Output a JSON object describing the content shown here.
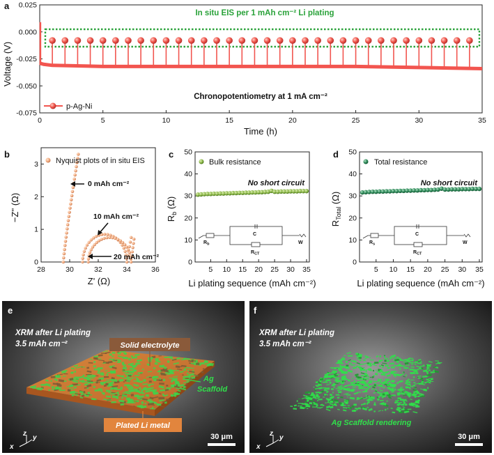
{
  "chart_data": [
    {
      "panel": "a",
      "type": "line",
      "xlabel": "Time (h)",
      "ylabel": "Voltage (V)",
      "xlim": [
        0,
        35
      ],
      "ylim": [
        -0.075,
        0.025
      ],
      "xticks": [
        "0",
        "5",
        "10",
        "15",
        "20",
        "25",
        "30",
        "35"
      ],
      "yticks": [
        "0.025",
        "0.000",
        "-0.025",
        "-0.050",
        "-0.075"
      ],
      "legend": "p-Ag-Ni",
      "annotation_top": "In situ EIS per 1 mAh cm⁻² Li plating",
      "annotation_bottom": "Chronopotentiometry at 1 mA cm⁻²",
      "series": [
        {
          "name": "p-Ag-Ni",
          "baseline": {
            "x": [
              0,
              0.3,
              1,
              5,
              10,
              15,
              20,
              25,
              30,
              35
            ],
            "y": [
              -0.029,
              -0.03,
              -0.031,
              -0.032,
              -0.032,
              -0.032,
              -0.032,
              -0.032,
              -0.033,
              -0.034
            ]
          },
          "eis_spikes_x": [
            1,
            2,
            3,
            4,
            5,
            6,
            7,
            8,
            9,
            10,
            11,
            12,
            13,
            14,
            15,
            16,
            17,
            18,
            19,
            20,
            21,
            22,
            23,
            24,
            25,
            26,
            27,
            28,
            29,
            30,
            31,
            32,
            33,
            34
          ],
          "eis_spikes_top_y": -0.008,
          "initial_spike": {
            "x": 0.05,
            "y": 0.009
          }
        }
      ]
    },
    {
      "panel": "b",
      "type": "scatter",
      "xlabel": "Z' (Ω)",
      "ylabel": "−Z'' (Ω)",
      "xlim": [
        28,
        36
      ],
      "ylim": [
        0,
        3.5
      ],
      "xticks": [
        "28",
        "30",
        "32",
        "34",
        "36"
      ],
      "yticks": [
        "0",
        "1",
        "2",
        "3"
      ],
      "legend": "Nyquist plots of in situ EIS",
      "labels": [
        "0 mAh cm⁻²",
        "10 mAh cm⁻²",
        "20 mAh cm⁻²"
      ]
    },
    {
      "panel": "c",
      "type": "scatter",
      "xlabel": "Li plating sequence (mAh cm⁻²)",
      "ylabel": "R_b (Ω)",
      "xlim": [
        1,
        35
      ],
      "ylim": [
        0,
        50
      ],
      "xticks": [
        "5",
        "10",
        "15",
        "20",
        "25",
        "30",
        "35"
      ],
      "yticks": [
        "0",
        "10",
        "20",
        "30",
        "40",
        "50"
      ],
      "legend": "Bulk resistance",
      "annotation": "No short circuit",
      "x": [
        1,
        2,
        3,
        4,
        5,
        6,
        7,
        8,
        9,
        10,
        11,
        12,
        13,
        14,
        15,
        16,
        17,
        18,
        19,
        20,
        21,
        22,
        23,
        24,
        25,
        26,
        27,
        28,
        29,
        30,
        31,
        32,
        33,
        34,
        35
      ],
      "y": [
        30.6,
        30.7,
        30.8,
        30.9,
        30.9,
        31.0,
        31.0,
        31.1,
        31.1,
        31.2,
        31.2,
        31.3,
        31.3,
        31.4,
        31.4,
        31.5,
        31.5,
        31.6,
        31.6,
        31.7,
        31.7,
        31.8,
        31.9,
        32.3,
        31.9,
        31.9,
        32.0,
        32.0,
        32.0,
        32.1,
        32.1,
        32.1,
        32.2,
        32.2,
        32.2
      ],
      "circuit": {
        "r_b": "R_b",
        "c": "C",
        "r_ct": "R_CT",
        "w": "W"
      }
    },
    {
      "panel": "d",
      "type": "scatter",
      "xlabel": "Li plating sequence (mAh cm⁻²)",
      "ylabel": "R_Total (Ω)",
      "xlim": [
        1,
        35
      ],
      "ylim": [
        0,
        50
      ],
      "xticks": [
        "5",
        "10",
        "15",
        "20",
        "25",
        "30",
        "35"
      ],
      "yticks": [
        "0",
        "10",
        "20",
        "30",
        "40",
        "50"
      ],
      "legend": "Total resistance",
      "annotation": "No short circuit",
      "x": [
        1,
        2,
        3,
        4,
        5,
        6,
        7,
        8,
        9,
        10,
        11,
        12,
        13,
        14,
        15,
        16,
        17,
        18,
        19,
        20,
        21,
        22,
        23,
        24,
        25,
        26,
        27,
        28,
        29,
        30,
        31,
        32,
        33,
        34,
        35
      ],
      "y": [
        31.6,
        31.7,
        31.8,
        31.9,
        31.9,
        32.0,
        32.0,
        32.1,
        32.1,
        32.2,
        32.2,
        32.3,
        32.3,
        32.4,
        32.4,
        32.5,
        32.5,
        32.6,
        32.6,
        32.7,
        32.7,
        32.8,
        32.9,
        33.3,
        32.9,
        32.9,
        33.0,
        33.0,
        33.0,
        33.1,
        33.1,
        33.1,
        33.2,
        33.2,
        33.2
      ],
      "circuit": {
        "r_s": "R_s",
        "c": "C",
        "r_ct": "R_CT",
        "w": "W"
      }
    }
  ],
  "images": {
    "e": {
      "letter": "e",
      "title": "XRM after Li plating",
      "subtitle": "3.5 mAh cm⁻²",
      "label_solid": "Solid electrolyte",
      "label_scaffold": "Ag Scaffold",
      "label_plated": "Plated Li metal",
      "scale_bar": "30 μm",
      "axes": {
        "z": "z",
        "y": "y",
        "x": "x"
      }
    },
    "f": {
      "letter": "f",
      "title": "XRM after Li plating",
      "subtitle": "3.5 mAh cm⁻²",
      "label_render": "Ag Scaffold rendering",
      "scale_bar": "30 μm",
      "axes": {
        "z": "z",
        "y": "y",
        "x": "x"
      }
    }
  },
  "colors": {
    "a_line": "#f2554f",
    "a_dot": "#f25a50",
    "a_dot_dark": "#d63a34",
    "eis_box": "#2aa23a",
    "eis_text": "#2aa23a",
    "b_dot": "#f4b48c",
    "c_dot": "#8db84a",
    "c_dot_dark": "#4f7a20",
    "d_dot": "#2f8a5a",
    "d_dot_dark": "#155a35",
    "scaffold": "#30e04a",
    "orange": "#e2853d",
    "brown": "#8a5a3a"
  },
  "panel_letters": {
    "a": "a",
    "b": "b",
    "c": "c",
    "d": "d"
  }
}
